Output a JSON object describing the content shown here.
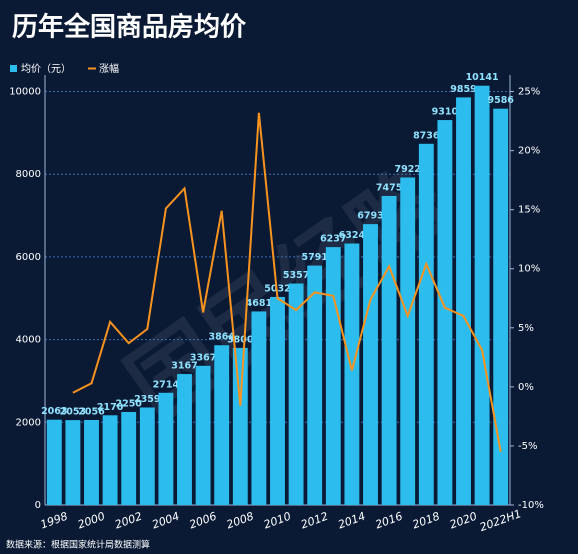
{
  "chart_data": {
    "type": "bar-line",
    "title": "历年全国商品房均价",
    "source": "数据来源：根据国家统计局数据测算",
    "watermark": "国民经略",
    "categories": [
      "1998",
      null,
      "2000",
      null,
      "2002",
      null,
      "2004",
      null,
      "2006",
      null,
      "2008",
      null,
      "2010",
      null,
      "2012",
      null,
      "2014",
      null,
      "2016",
      null,
      "2018",
      null,
      "2020",
      null,
      "2022H1"
    ],
    "series": [
      {
        "name": "均价（元）",
        "type": "bar",
        "color": "#2cbcee",
        "axis": "y",
        "values": [
          2063,
          2053,
          2056,
          2170,
          2250,
          2359,
          2714,
          3167,
          3367,
          3864,
          3800,
          4681,
          5032,
          5357,
          5791,
          6237,
          6324,
          6793,
          7475,
          7922,
          8736,
          9310,
          9859,
          10141,
          9586
        ]
      },
      {
        "name": "涨幅",
        "type": "line",
        "color": "#f7931e",
        "axis": "y2",
        "values": [
          null,
          -0.5,
          0.3,
          5.5,
          3.7,
          4.9,
          15.1,
          16.8,
          6.3,
          14.9,
          -1.6,
          23.2,
          7.5,
          6.5,
          8.0,
          7.7,
          1.4,
          7.4,
          10.2,
          6.0,
          10.4,
          6.7,
          6.0,
          3.1,
          -5.5
        ]
      }
    ],
    "ylim": [
      0,
      10400
    ],
    "yticks": [
      0,
      2000,
      4000,
      6000,
      8000,
      10000
    ],
    "y2lim": [
      -10,
      26.4
    ],
    "y2ticks": [
      {
        "value": -10,
        "label": "-10%"
      },
      {
        "value": -5,
        "label": "-5%"
      },
      {
        "value": 0,
        "label": "0%"
      },
      {
        "value": 5,
        "label": "5%"
      },
      {
        "value": 10,
        "label": "10%"
      },
      {
        "value": 15,
        "label": "15%"
      },
      {
        "value": 20,
        "label": "20%"
      },
      {
        "value": 25,
        "label": "25%"
      }
    ],
    "grid": true,
    "legend": "top-left"
  }
}
